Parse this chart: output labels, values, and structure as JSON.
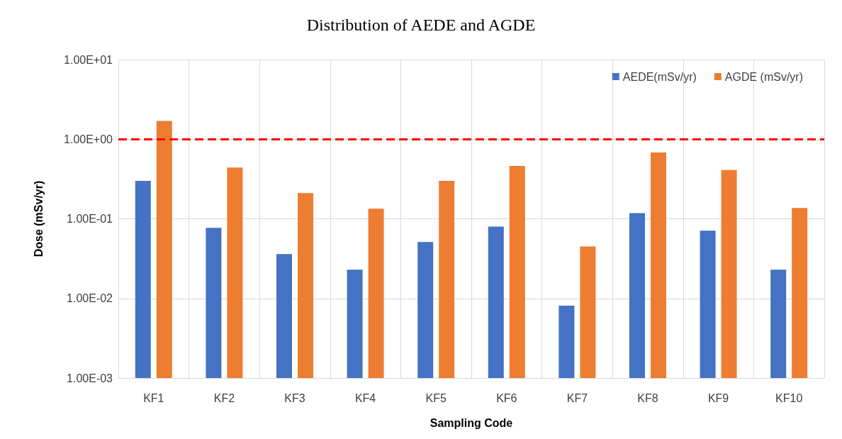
{
  "chart_data": {
    "type": "bar",
    "title": "Distribution of AEDE and AGDE",
    "xlabel": "Sampling Code",
    "ylabel": "Dose (mSv/yr)",
    "categories": [
      "KF1",
      "KF2",
      "KF3",
      "KF4",
      "KF5",
      "KF6",
      "KF7",
      "KF8",
      "KF9",
      "KF10"
    ],
    "series": [
      {
        "name": "AEDE(mSv/yr)",
        "color": "#4472c4",
        "values": [
          0.3,
          0.077,
          0.036,
          0.023,
          0.051,
          0.08,
          0.0081,
          0.118,
          0.071,
          0.023
        ]
      },
      {
        "name": "AGDE (mSv/yr)",
        "color": "#ed7d31",
        "values": [
          1.7,
          0.44,
          0.21,
          0.134,
          0.3,
          0.46,
          0.045,
          0.68,
          0.41,
          0.137
        ]
      }
    ],
    "log": "y",
    "ylim": [
      0.001,
      10
    ],
    "yticks": [
      {
        "value": 0.001,
        "label": "1.00E-03"
      },
      {
        "value": 0.01,
        "label": "1.00E-02"
      },
      {
        "value": 0.1,
        "label": "1.00E-01"
      },
      {
        "value": 1,
        "label": "1.00E+00"
      },
      {
        "value": 10,
        "label": "1.00E+01"
      }
    ],
    "ref_lines": [
      {
        "axis": "y",
        "value": 1,
        "color": "#ff0000",
        "line_style": "dashed"
      }
    ],
    "grid": true,
    "legend": "top right"
  }
}
